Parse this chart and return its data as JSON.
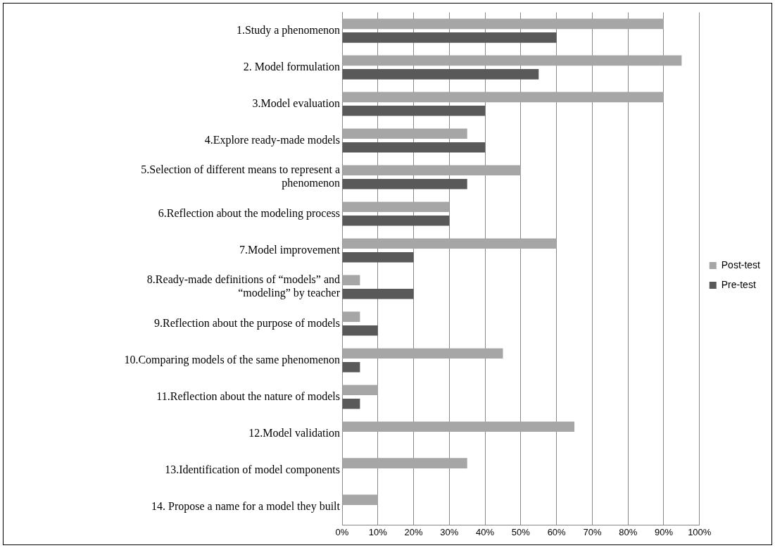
{
  "chart_data": {
    "type": "bar",
    "orientation": "horizontal",
    "categories": [
      "1.Study a phenomenon",
      "2. Model formulation",
      "3.Model evaluation",
      "4.Explore ready-made models",
      "5.Selection of different means to represent a phenomenon",
      "6.Reflection about the modeling process",
      "7.Model improvement",
      "8.Ready-made definitions of “models” and “modeling” by teacher",
      "9.Reflection about the purpose of models",
      "10.Comparing models of the same phenomenon",
      "11.Reflection about the nature of models",
      "12.Model validation",
      "13.Identification of model components",
      "14. Propose a name for a model they built"
    ],
    "series": [
      {
        "name": "Post-test",
        "color": "#a6a6a6",
        "values": [
          90,
          95,
          90,
          35,
          50,
          30,
          60,
          5,
          5,
          45,
          10,
          65,
          35,
          10
        ]
      },
      {
        "name": "Pre-test",
        "color": "#595959",
        "values": [
          60,
          55,
          40,
          40,
          35,
          30,
          20,
          20,
          10,
          5,
          5,
          0,
          0,
          0
        ]
      }
    ],
    "xlim": [
      0,
      100
    ],
    "xticks": [
      {
        "value": 0,
        "label": "0%"
      },
      {
        "value": 10,
        "label": "10%"
      },
      {
        "value": 20,
        "label": "20%"
      },
      {
        "value": 30,
        "label": "30%"
      },
      {
        "value": 40,
        "label": "40%"
      },
      {
        "value": 50,
        "label": "50%"
      },
      {
        "value": 60,
        "label": "60%"
      },
      {
        "value": 70,
        "label": "70%"
      },
      {
        "value": 80,
        "label": "80%"
      },
      {
        "value": 90,
        "label": "90%"
      },
      {
        "value": 100,
        "label": "100%"
      }
    ],
    "grid": "x",
    "legend": "right"
  }
}
